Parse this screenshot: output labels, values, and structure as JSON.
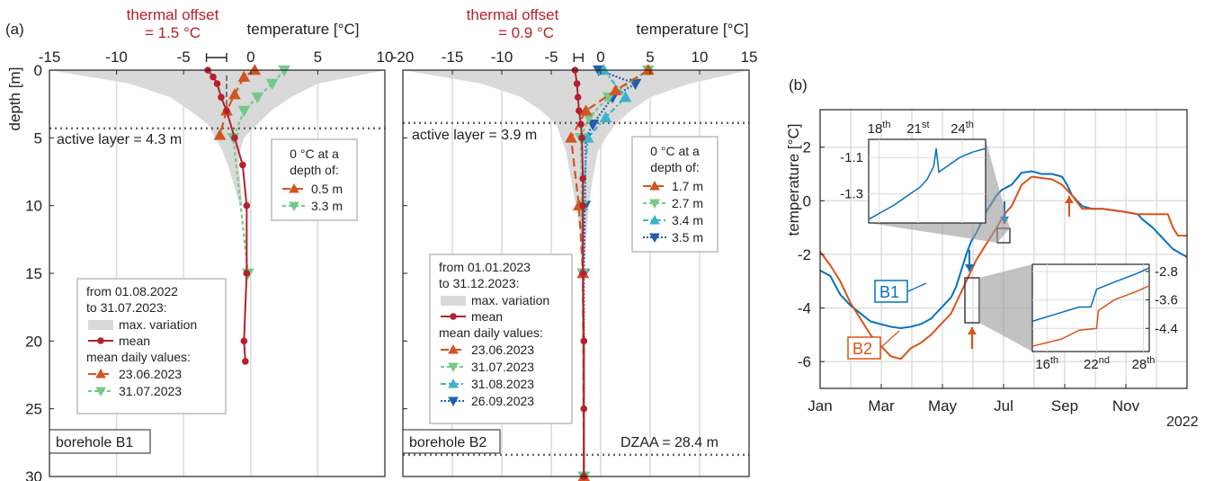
{
  "panel_labels": {
    "a": "(a)",
    "b": "(b)"
  },
  "colors": {
    "mean": "#b5202e",
    "orange": "#d45420",
    "green": "#75c98a",
    "cyan": "#3cb3c9",
    "blue": "#1f5fb0",
    "b1_line": "#0072bd",
    "b2_line": "#d95319",
    "variation": "#d9d9d9",
    "grid": "#dcdcdc"
  },
  "chart_data": [
    {
      "id": "B1",
      "type": "line",
      "xlabel": "temperature [°C]",
      "ylabel": "depth [m]",
      "xlim": [
        -15,
        10
      ],
      "ylim": [
        0,
        30
      ],
      "xticks": [
        "-15",
        "-10",
        "-5",
        "0",
        "5",
        "10"
      ],
      "yticks": [
        "0",
        "5",
        "10",
        "15",
        "20",
        "25",
        "30"
      ],
      "y_reversed": true,
      "x_axis_position": "top",
      "thermal_offset_label": [
        "thermal offset",
        "= 1.5 °C"
      ],
      "thermal_offset": {
        "from": -3.3,
        "to": -1.8
      },
      "active_layer": {
        "depth": 4.3,
        "label": "active layer = 4.3 m"
      },
      "borehole_label": "borehole B1",
      "variation": {
        "depth": [
          0,
          1,
          2,
          3,
          4,
          5,
          6,
          7,
          8,
          9,
          10,
          10
        ],
        "tmin": [
          -15,
          -9,
          -6,
          -4.5,
          -3.2,
          -2.6,
          -2.1,
          -1.7,
          -1.4,
          -1.1,
          -0.8,
          -0.5
        ],
        "tmax": [
          10,
          5,
          3,
          1.5,
          0.5,
          -0.5,
          -0.8,
          -0.9,
          -0.8,
          -0.7,
          -0.6,
          -0.5
        ]
      },
      "series": [
        {
          "name": "mean",
          "style": "mean",
          "points": [
            [
              -3.2,
              0
            ],
            [
              -2.8,
              0.5
            ],
            [
              -2.5,
              1
            ],
            [
              -2.2,
              2
            ],
            [
              -1.8,
              3
            ],
            [
              -1.2,
              5
            ],
            [
              -0.6,
              7
            ],
            [
              -0.3,
              10
            ],
            [
              -0.3,
              15
            ],
            [
              -0.5,
              20
            ],
            [
              -0.4,
              21.5
            ]
          ]
        },
        {
          "name": "23.06.2023",
          "style": "orange",
          "marker": "up",
          "points": [
            [
              0.3,
              0
            ],
            [
              -0.5,
              0.5
            ],
            [
              -1.2,
              1.8
            ],
            [
              -1.8,
              3
            ],
            [
              -2.3,
              4.8
            ]
          ]
        },
        {
          "name": "31.07.2023",
          "style": "green",
          "marker": "down",
          "points": [
            [
              2.5,
              0
            ],
            [
              1.6,
              1
            ],
            [
              0.5,
              2
            ],
            [
              -0.5,
              3
            ],
            [
              -1.3,
              5
            ],
            [
              -0.2,
              15
            ]
          ]
        }
      ],
      "inner_legend": {
        "title": [
          "0 °C at a",
          "depth of:"
        ],
        "entries": [
          {
            "style": "orange",
            "marker": "up",
            "label": "0.5 m"
          },
          {
            "style": "green",
            "marker": "down",
            "label": "3.3 m"
          }
        ]
      },
      "legend": {
        "title": [
          "from 01.08.2022",
          "to 31.07.2023:"
        ],
        "variation": "max. variation",
        "mean": "mean",
        "daily": "mean daily values:",
        "entries": [
          {
            "style": "orange",
            "marker": "up",
            "label": "23.06.2023"
          },
          {
            "style": "green",
            "marker": "down",
            "label": "31.07.2023"
          }
        ]
      }
    },
    {
      "id": "B2",
      "type": "line",
      "xlabel": "temperature [°C]",
      "xlim": [
        -20,
        15
      ],
      "ylim": [
        0,
        30
      ],
      "xticks": [
        "-20",
        "-15",
        "-10",
        "-5",
        "0",
        "5",
        "10",
        "15"
      ],
      "y_reversed": true,
      "x_axis_position": "top",
      "thermal_offset_label": [
        "thermal offset",
        "= 0.9 °C"
      ],
      "thermal_offset": {
        "from": -2.7,
        "to": -1.8
      },
      "active_layer": {
        "depth": 3.9,
        "label": "active layer = 3.9 m"
      },
      "dzaa": {
        "depth": 28.4,
        "label": "DZAA = 28.4 m"
      },
      "borehole_label": "borehole B2",
      "variation": {
        "depth": [
          0,
          1,
          2,
          3,
          4,
          5,
          6,
          8,
          10,
          12,
          14,
          15
        ],
        "tmin": [
          -20,
          -12,
          -8,
          -6,
          -4.5,
          -4,
          -3.5,
          -3,
          -2.5,
          -2.1,
          -1.9,
          -1.8
        ],
        "tmax": [
          15,
          9,
          5,
          3,
          1.5,
          0.5,
          -0.3,
          -0.8,
          -1.2,
          -1.4,
          -1.6,
          -1.8
        ]
      },
      "series": [
        {
          "name": "mean",
          "style": "mean",
          "points": [
            [
              -2.6,
              0
            ],
            [
              -2.4,
              1
            ],
            [
              -2.3,
              2
            ],
            [
              -2.2,
              3
            ],
            [
              -2.0,
              4
            ],
            [
              -1.9,
              5
            ],
            [
              -1.8,
              8
            ],
            [
              -1.8,
              10
            ],
            [
              -1.8,
              15
            ],
            [
              -1.7,
              20
            ],
            [
              -1.7,
              25
            ],
            [
              -1.7,
              30
            ]
          ]
        },
        {
          "name": "23.06.2023",
          "style": "orange",
          "marker": "up",
          "points": [
            [
              4.8,
              0
            ],
            [
              1.5,
              1.5
            ],
            [
              -1.5,
              3
            ],
            [
              -3.0,
              5
            ],
            [
              -2.2,
              10
            ],
            [
              -1.8,
              15
            ],
            [
              -1.7,
              30
            ]
          ]
        },
        {
          "name": "31.07.2023",
          "style": "green",
          "marker": "down",
          "points": [
            [
              4.8,
              0
            ],
            [
              0.8,
              2
            ],
            [
              -1.2,
              3.5
            ],
            [
              -2.0,
              5
            ],
            [
              -1.9,
              10
            ],
            [
              -1.8,
              15
            ],
            [
              -1.7,
              30
            ]
          ]
        },
        {
          "name": "31.08.2023",
          "style": "cyan",
          "marker": "up",
          "points": [
            [
              0.3,
              0
            ],
            [
              2.5,
              2
            ],
            [
              0.5,
              3.5
            ],
            [
              -1.3,
              5
            ],
            [
              -1.9,
              10
            ],
            [
              -1.8,
              15
            ],
            [
              -1.7,
              30
            ]
          ]
        },
        {
          "name": "26.09.2023",
          "style": "blue",
          "marker": "down",
          "points": [
            [
              -0.2,
              0
            ],
            [
              3.5,
              1
            ],
            [
              1.2,
              2
            ],
            [
              -0.8,
              4
            ],
            [
              -1.5,
              5
            ],
            [
              -1.6,
              10
            ],
            [
              -1.7,
              15
            ],
            [
              -1.7,
              30
            ]
          ]
        }
      ],
      "inner_legend": {
        "title": [
          "0 °C at a",
          "depth of:"
        ],
        "entries": [
          {
            "style": "orange",
            "marker": "up",
            "label": "1.7 m"
          },
          {
            "style": "green",
            "marker": "down",
            "label": "2.7 m"
          },
          {
            "style": "cyan",
            "marker": "up",
            "label": "3.4 m"
          },
          {
            "style": "blue",
            "marker": "down",
            "label": "3.5 m"
          }
        ]
      },
      "legend": {
        "title": [
          "from 01.01.2023",
          "to 31.12.2023:"
        ],
        "variation": "max. variation",
        "mean": "mean",
        "daily": "mean daily values:",
        "entries": [
          {
            "style": "orange",
            "marker": "up",
            "label": "23.06.2023"
          },
          {
            "style": "green",
            "marker": "down",
            "label": "31.07.2023"
          },
          {
            "style": "cyan",
            "marker": "up",
            "label": "31.08.2023"
          },
          {
            "style": "blue",
            "marker": "down",
            "label": "26.09.2023"
          }
        ]
      }
    },
    {
      "id": "timeseries",
      "type": "line",
      "ylabel": "temperature [°C]",
      "ylim": [
        -7,
        3.4
      ],
      "yticks": [
        "-6",
        "-4",
        "-2",
        "0",
        "2"
      ],
      "xticks": [
        "Jan",
        "Mar",
        "May",
        "Jul",
        "Sep",
        "Nov"
      ],
      "year_label": "2022",
      "series": [
        {
          "name": "B1",
          "style": "b1_line",
          "points": [
            [
              0,
              -2.6
            ],
            [
              10,
              -2.8
            ],
            [
              20,
              -3.5
            ],
            [
              30,
              -3.9
            ],
            [
              40,
              -4.2
            ],
            [
              50,
              -4.5
            ],
            [
              60,
              -4.6
            ],
            [
              70,
              -4.7
            ],
            [
              80,
              -4.75
            ],
            [
              90,
              -4.7
            ],
            [
              100,
              -4.6
            ],
            [
              110,
              -4.4
            ],
            [
              120,
              -4.0
            ],
            [
              130,
              -3.6
            ],
            [
              135,
              -3.2
            ],
            [
              140,
              -2.6
            ],
            [
              145,
              -2.0
            ],
            [
              150,
              -1.5
            ],
            [
              155,
              -1.2
            ],
            [
              160,
              -0.8
            ],
            [
              165,
              -0.4
            ],
            [
              170,
              -0.1
            ],
            [
              175,
              0.2
            ],
            [
              180,
              0.4
            ],
            [
              185,
              0.5
            ],
            [
              190,
              0.6
            ],
            [
              200,
              1.05
            ],
            [
              210,
              1.1
            ],
            [
              220,
              1.0
            ],
            [
              230,
              1.0
            ],
            [
              240,
              0.9
            ],
            [
              245,
              0.6
            ],
            [
              250,
              0.2
            ],
            [
              260,
              -0.2
            ],
            [
              270,
              -0.3
            ],
            [
              280,
              -0.3
            ],
            [
              300,
              -0.4
            ],
            [
              315,
              -0.5
            ],
            [
              320,
              -0.7
            ],
            [
              330,
              -1.0
            ],
            [
              340,
              -1.4
            ],
            [
              350,
              -1.8
            ],
            [
              364,
              -2.1
            ]
          ]
        },
        {
          "name": "B2",
          "style": "b2_line",
          "points": [
            [
              0,
              -1.9
            ],
            [
              10,
              -2.4
            ],
            [
              20,
              -3.0
            ],
            [
              30,
              -3.8
            ],
            [
              40,
              -4.4
            ],
            [
              50,
              -5.0
            ],
            [
              60,
              -5.4
            ],
            [
              70,
              -5.8
            ],
            [
              80,
              -5.9
            ],
            [
              90,
              -5.5
            ],
            [
              100,
              -5.3
            ],
            [
              110,
              -5.0
            ],
            [
              120,
              -4.6
            ],
            [
              130,
              -4.2
            ],
            [
              135,
              -3.8
            ],
            [
              140,
              -3.4
            ],
            [
              145,
              -3.0
            ],
            [
              150,
              -2.6
            ],
            [
              155,
              -2.2
            ],
            [
              160,
              -1.9
            ],
            [
              165,
              -1.6
            ],
            [
              170,
              -1.3
            ],
            [
              175,
              -1.0
            ],
            [
              180,
              -0.7
            ],
            [
              185,
              -0.4
            ],
            [
              190,
              -0.2
            ],
            [
              200,
              0.6
            ],
            [
              210,
              0.9
            ],
            [
              220,
              0.85
            ],
            [
              230,
              0.8
            ],
            [
              240,
              0.6
            ],
            [
              250,
              0.2
            ],
            [
              260,
              -0.3
            ],
            [
              270,
              -0.3
            ],
            [
              280,
              -0.3
            ],
            [
              300,
              -0.4
            ],
            [
              315,
              -0.5
            ],
            [
              320,
              -0.5
            ],
            [
              335,
              -0.5
            ],
            [
              345,
              -0.5
            ],
            [
              350,
              -1.0
            ],
            [
              355,
              -1.3
            ],
            [
              364,
              -1.3
            ]
          ]
        }
      ],
      "series_labels": {
        "B1": "B1",
        "B2": "B2"
      },
      "inset_top": {
        "xticks": [
          "18th",
          "21st",
          "24th"
        ],
        "yticks": [
          "-1.1",
          "-1.3"
        ],
        "points": [
          [
            0,
            -1.44
          ],
          [
            1,
            -1.4
          ],
          [
            2,
            -1.36
          ],
          [
            3,
            -1.31
          ],
          [
            4,
            -1.26
          ],
          [
            4.5,
            -1.22
          ],
          [
            5,
            -1.15
          ],
          [
            5.2,
            -1.05
          ],
          [
            5.4,
            -1.18
          ],
          [
            5.6,
            -1.17
          ],
          [
            6,
            -1.15
          ],
          [
            7,
            -1.1
          ],
          [
            8,
            -1.07
          ],
          [
            9,
            -1.05
          ]
        ]
      },
      "inset_bottom": {
        "xticks": [
          "16th",
          "22nd",
          "28th"
        ],
        "yticks": [
          "-2.8",
          "-3.6",
          "-4.4"
        ],
        "b1": [
          [
            0,
            -4.2
          ],
          [
            4,
            -4.0
          ],
          [
            8,
            -3.8
          ],
          [
            10,
            -3.8
          ],
          [
            11,
            -3.3
          ],
          [
            14,
            -3.1
          ],
          [
            18,
            -2.85
          ],
          [
            20,
            -2.7
          ]
        ],
        "b2": [
          [
            0,
            -4.9
          ],
          [
            5,
            -4.7
          ],
          [
            8,
            -4.45
          ],
          [
            11,
            -4.4
          ],
          [
            11.3,
            -3.9
          ],
          [
            14,
            -3.6
          ],
          [
            18,
            -3.35
          ],
          [
            20,
            -3.2
          ]
        ]
      }
    }
  ]
}
